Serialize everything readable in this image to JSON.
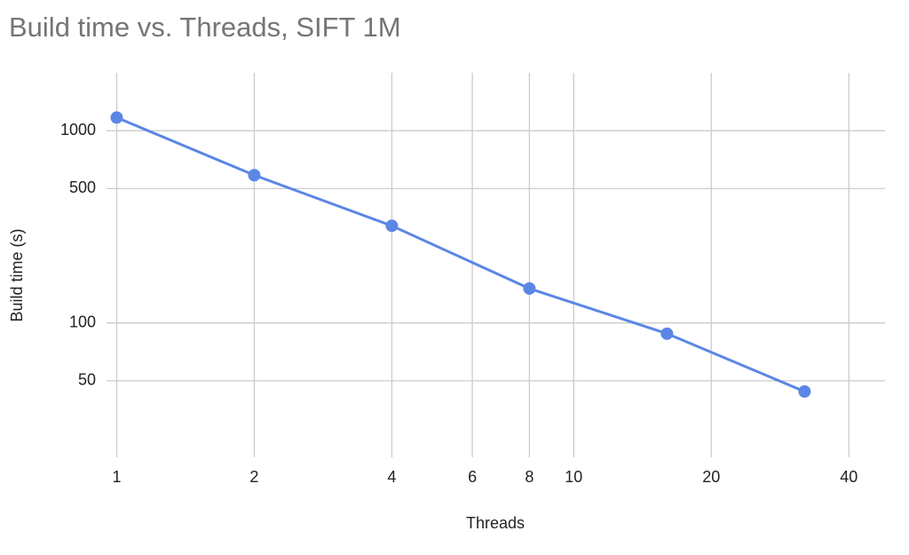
{
  "chart_data": {
    "type": "line",
    "title": "Build time vs. Threads, SIFT 1M",
    "x_label": "Threads",
    "y_label": "Build time (s)",
    "x": [
      1,
      2,
      4,
      8,
      16,
      32
    ],
    "series": [
      {
        "name": "Build time (s)",
        "color": "#5b86e5",
        "values": [
          1170,
          587,
          320,
          151,
          88,
          44
        ]
      }
    ],
    "xlim": [
      0.95,
      48
    ],
    "ylim": [
      20,
      2000
    ],
    "xticks": [
      1,
      2,
      4,
      6,
      8,
      10,
      20,
      40
    ],
    "yticks": [
      50,
      100,
      500,
      1000
    ],
    "xscale": "log",
    "yscale": "log",
    "grid": true
  }
}
